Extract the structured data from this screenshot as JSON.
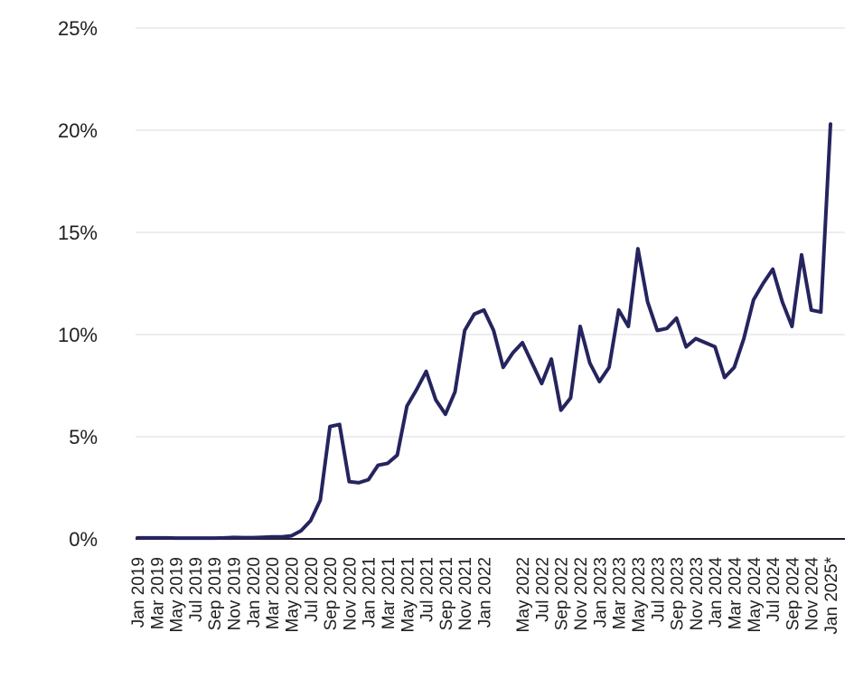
{
  "chart_data": {
    "type": "line",
    "title": "",
    "xlabel": "",
    "ylabel": "",
    "ylim": [
      0,
      25
    ],
    "y_ticks": [
      "0%",
      "5%",
      "10%",
      "15%",
      "20%",
      "25%"
    ],
    "y_tick_values": [
      0,
      5,
      10,
      15,
      20,
      25
    ],
    "grid": true,
    "line_color": "#25245e",
    "x": [
      "Jan 2019",
      "Feb 2019",
      "Mar 2019",
      "Apr 2019",
      "May 2019",
      "Jun 2019",
      "Jul 2019",
      "Aug 2019",
      "Sep 2019",
      "Oct 2019",
      "Nov 2019",
      "Dec 2019",
      "Jan 2020",
      "Feb 2020",
      "Mar 2020",
      "Apr 2020",
      "May 2020",
      "Jun 2020",
      "Jul 2020",
      "Aug 2020",
      "Sep 2020",
      "Oct 2020",
      "Nov 2020",
      "Dec 2020",
      "Jan 2021",
      "Feb 2021",
      "Mar 2021",
      "Apr 2021",
      "May 2021",
      "Jun 2021",
      "Jul 2021",
      "Aug 2021",
      "Sep 2021",
      "Oct 2021",
      "Nov 2021",
      "Dec 2021",
      "Jan 2022",
      "Feb 2022",
      "Mar 2022",
      "Apr 2022",
      "May 2022",
      "Jun 2022",
      "Jul 2022",
      "Aug 2022",
      "Sep 2022",
      "Oct 2022",
      "Nov 2022",
      "Dec 2022",
      "Jan 2023",
      "Feb 2023",
      "Mar 2023",
      "Apr 2023",
      "May 2023",
      "Jun 2023",
      "Jul 2023",
      "Aug 2023",
      "Sep 2023",
      "Oct 2023",
      "Nov 2023",
      "Dec 2023",
      "Jan 2024",
      "Feb 2024",
      "Mar 2024",
      "Apr 2024",
      "May 2024",
      "Jun 2024",
      "Jul 2024",
      "Aug 2024",
      "Sep 2024",
      "Oct 2024",
      "Nov 2024",
      "Dec 2024",
      "Jan 2025*"
    ],
    "x_tick_labels": [
      "Jan 2019",
      "Mar 2019",
      "May 2019",
      "Jul 2019",
      "Sep 2019",
      "Nov 2019",
      "Jan 2020",
      "Mar 2020",
      "May 2020",
      "Jul 2020",
      "Sep 2020",
      "Nov 2020",
      "Jan 2021",
      "Mar 2021",
      "May 2021",
      "Jul 2021",
      "Sep 2021",
      "Nov 2021",
      "Jan 2022",
      "May 2022",
      "Jul 2022",
      "Sep 2022",
      "Nov 2022",
      "Jan 2023",
      "Mar 2023",
      "May 2023",
      "Jul 2023",
      "Sep 2023",
      "Nov 2023",
      "Jan 2024",
      "Mar 2024",
      "May 2024",
      "Jul 2024",
      "Sep 2024",
      "Nov 2024",
      "Jan 2025*"
    ],
    "series": [
      {
        "values": [
          0.05,
          0.05,
          0.05,
          0.05,
          0.04,
          0.04,
          0.04,
          0.04,
          0.04,
          0.05,
          0.07,
          0.06,
          0.06,
          0.08,
          0.1,
          0.1,
          0.15,
          0.4,
          0.9,
          1.9,
          5.5,
          5.6,
          2.8,
          2.75,
          2.9,
          3.6,
          3.7,
          4.1,
          6.5,
          7.3,
          8.2,
          6.8,
          6.1,
          7.2,
          10.2,
          11.0,
          11.2,
          10.2,
          8.4,
          9.1,
          9.6,
          8.6,
          7.6,
          8.8,
          6.3,
          6.9,
          10.4,
          8.6,
          7.7,
          8.4,
          11.2,
          10.4,
          14.2,
          11.6,
          10.2,
          10.3,
          10.8,
          9.4,
          9.8,
          9.6,
          9.4,
          7.9,
          8.4,
          9.8,
          11.7,
          12.5,
          13.2,
          11.6,
          10.4,
          13.9,
          11.2,
          11.1,
          20.3
        ]
      }
    ]
  }
}
